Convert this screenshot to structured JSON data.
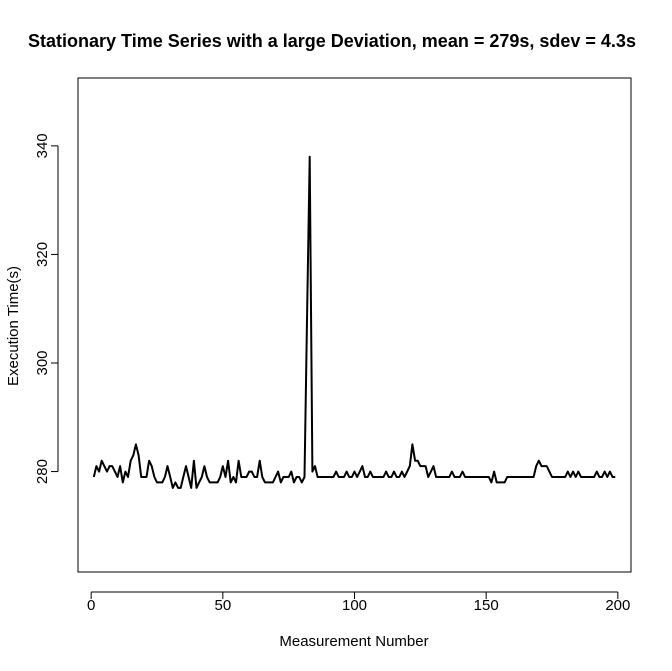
{
  "chart_data": {
    "type": "line",
    "title": "Stationary Time Series with a large Deviation, mean = 279s, sdev = 4.3s",
    "xlabel": "Measurement Number",
    "ylabel": "Execution Time(s)",
    "xlim": [
      -5,
      205
    ],
    "ylim": [
      261.5,
      352.5
    ],
    "xticks": [
      0,
      50,
      100,
      150,
      200
    ],
    "yticks": [
      280,
      300,
      320,
      340
    ],
    "grid": false,
    "legend": "none",
    "line_color": "#000000",
    "series": [
      {
        "x": [
          1,
          2,
          3,
          4,
          5,
          6,
          7,
          8,
          9,
          10,
          11,
          12,
          13,
          14,
          15,
          16,
          17,
          18,
          19,
          20,
          21,
          22,
          23,
          24,
          25,
          26,
          27,
          28,
          29,
          30,
          31,
          32,
          33,
          34,
          35,
          36,
          37,
          38,
          39,
          40,
          41,
          42,
          43,
          44,
          45,
          46,
          47,
          48,
          49,
          50,
          51,
          52,
          53,
          54,
          55,
          56,
          57,
          58,
          59,
          60,
          61,
          62,
          63,
          64,
          65,
          66,
          67,
          68,
          69,
          70,
          71,
          72,
          73,
          74,
          75,
          76,
          77,
          78,
          79,
          80,
          81,
          82,
          83,
          84,
          85,
          86,
          87,
          88,
          89,
          90,
          91,
          92,
          93,
          94,
          95,
          96,
          97,
          98,
          99,
          100,
          101,
          102,
          103,
          104,
          105,
          106,
          107,
          108,
          109,
          110,
          111,
          112,
          113,
          114,
          115,
          116,
          117,
          118,
          119,
          120,
          121,
          122,
          123,
          124,
          125,
          126,
          127,
          128,
          129,
          130,
          131,
          132,
          133,
          134,
          135,
          136,
          137,
          138,
          139,
          140,
          141,
          142,
          143,
          144,
          145,
          146,
          147,
          148,
          149,
          150,
          151,
          152,
          153,
          154,
          155,
          156,
          157,
          158,
          159,
          160,
          161,
          162,
          163,
          164,
          165,
          166,
          167,
          168,
          169,
          170,
          171,
          172,
          173,
          174,
          175,
          176,
          177,
          178,
          179,
          180,
          181,
          182,
          183,
          184,
          185,
          186,
          187,
          188,
          189,
          190,
          191,
          192,
          193,
          194,
          195,
          196,
          197,
          198,
          199
        ],
        "y": [
          279,
          281,
          280,
          282,
          281,
          280,
          281,
          281,
          280,
          279,
          281,
          278,
          280,
          279,
          282,
          283,
          285,
          283,
          279,
          279,
          279,
          282,
          281,
          279,
          278,
          278,
          278,
          279,
          281,
          279,
          277,
          278,
          277,
          277,
          279,
          281,
          279,
          277,
          282,
          277,
          278,
          279,
          281,
          279,
          278,
          278,
          278,
          278,
          279,
          281,
          279,
          282,
          278,
          279,
          278,
          282,
          279,
          279,
          279,
          280,
          280,
          279,
          279,
          282,
          279,
          278,
          278,
          278,
          278,
          279,
          280,
          278,
          279,
          279,
          279,
          280,
          278,
          279,
          279,
          278,
          279,
          309,
          338,
          280,
          281,
          279,
          279,
          279,
          279,
          279,
          279,
          279,
          280,
          279,
          279,
          279,
          280,
          279,
          279,
          280,
          279,
          280,
          281,
          279,
          279,
          280,
          279,
          279,
          279,
          279,
          279,
          280,
          279,
          279,
          280,
          279,
          279,
          280,
          279,
          280,
          281,
          285,
          282,
          282,
          281,
          281,
          281,
          279,
          280,
          281,
          279,
          279,
          279,
          279,
          279,
          279,
          280,
          279,
          279,
          279,
          280,
          279,
          279,
          279,
          279,
          279,
          279,
          279,
          279,
          279,
          279,
          278,
          280,
          278,
          278,
          278,
          278,
          279,
          279,
          279,
          279,
          279,
          279,
          279,
          279,
          279,
          279,
          279,
          281,
          282,
          281,
          281,
          281,
          280,
          279,
          279,
          279,
          279,
          279,
          279,
          280,
          279,
          280,
          279,
          280,
          279,
          279,
          279,
          279,
          279,
          279,
          280,
          279,
          279,
          280,
          279,
          280,
          279,
          279
        ]
      }
    ]
  }
}
